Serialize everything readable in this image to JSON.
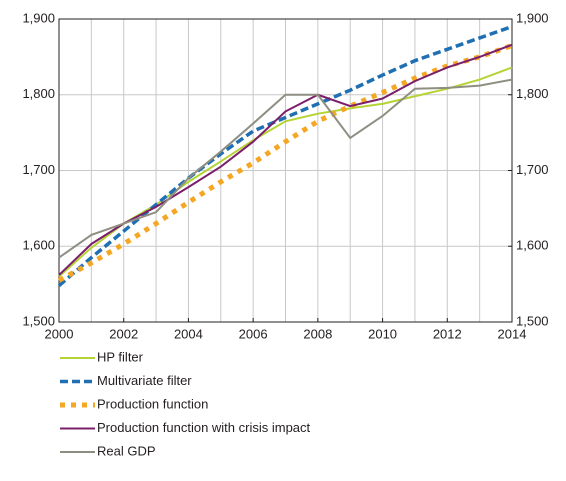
{
  "chart_data": {
    "type": "line",
    "x": [
      2000,
      2001,
      2002,
      2003,
      2004,
      2005,
      2006,
      2007,
      2008,
      2009,
      2010,
      2011,
      2012,
      2013,
      2014
    ],
    "xlim": [
      2000,
      2014
    ],
    "xticks": [
      2000,
      2002,
      2004,
      2006,
      2008,
      2010,
      2012,
      2014
    ],
    "ylim": [
      1500,
      1900
    ],
    "yticks": [
      {
        "value": 1500,
        "label": "1,500"
      },
      {
        "value": 1600,
        "label": "1,600"
      },
      {
        "value": 1700,
        "label": "1,700"
      },
      {
        "value": 1800,
        "label": "1,800"
      },
      {
        "value": 1900,
        "label": "1,900"
      }
    ],
    "y2lim": [
      1500,
      1900
    ],
    "y2ticks": [
      {
        "value": 1500,
        "label": "1,500"
      },
      {
        "value": 1600,
        "label": "1,600"
      },
      {
        "value": 1700,
        "label": "1,700"
      },
      {
        "value": 1800,
        "label": "1,800"
      },
      {
        "value": 1900,
        "label": "1,900"
      }
    ],
    "grid": true,
    "legend": "bottom",
    "series": [
      {
        "name": "HP filter",
        "color": "#b5d334",
        "style": "solid",
        "values": [
          1560,
          1598,
          1630,
          1655,
          1685,
          1712,
          1740,
          1765,
          1775,
          1782,
          1788,
          1798,
          1808,
          1820,
          1836
        ]
      },
      {
        "name": "Multivariate filter",
        "color": "#1f6fb3",
        "style": "dashed",
        "values": [
          1548,
          1585,
          1620,
          1655,
          1690,
          1722,
          1752,
          1770,
          1788,
          1806,
          1826,
          1845,
          1860,
          1875,
          1890
        ]
      },
      {
        "name": "Production function",
        "color": "#f5a623",
        "style": "dotted",
        "values": [
          1555,
          1578,
          1603,
          1630,
          1658,
          1685,
          1710,
          1738,
          1765,
          1785,
          1803,
          1822,
          1838,
          1850,
          1865
        ]
      },
      {
        "name": "Production function with crisis impact",
        "color": "#7b1f6a",
        "style": "solid",
        "values": [
          1562,
          1603,
          1630,
          1652,
          1678,
          1705,
          1738,
          1778,
          1800,
          1785,
          1795,
          1818,
          1836,
          1850,
          1866
        ]
      },
      {
        "name": "Real GDP",
        "color": "#8f8e82",
        "style": "solid",
        "values": [
          1585,
          1615,
          1630,
          1645,
          1690,
          1725,
          1762,
          1800,
          1800,
          1743,
          1772,
          1808,
          1809,
          1812,
          1820
        ]
      }
    ]
  }
}
